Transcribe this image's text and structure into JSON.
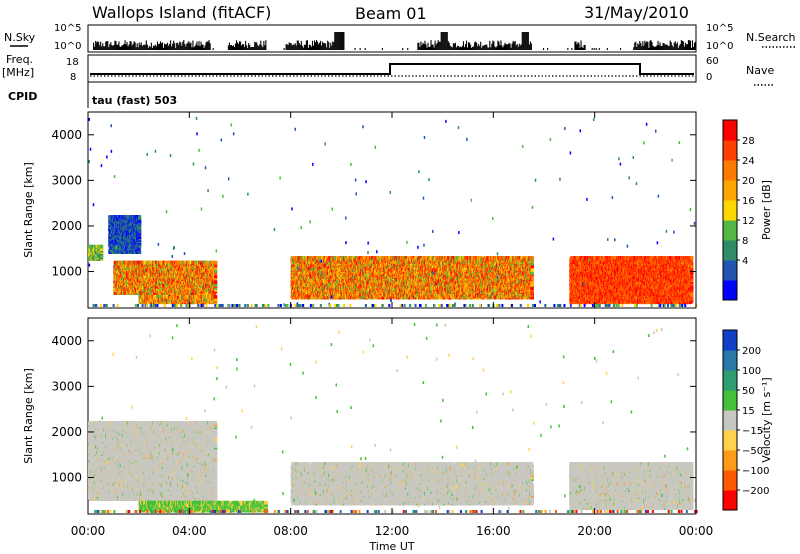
{
  "header": {
    "station": "Wallops Island (fitACF)",
    "beam": "Beam 01",
    "date": "31/May/2010"
  },
  "top_panels": {
    "nsky_label": "N.Sky",
    "nsearch_label": "N.Search",
    "nsky_ticks": [
      "10^5",
      "10^0"
    ],
    "nsearch_ticks": [
      "10^5",
      "10^0"
    ],
    "freq_label": "Freq.",
    "freq_unit": "[MHz]",
    "freq_ticks": [
      "18",
      "8"
    ],
    "nave_label": "Nave",
    "nave_ticks": [
      "60",
      "0"
    ],
    "cpid_label": "CPID",
    "cpid_text": "tau (fast) 503"
  },
  "x_axis": {
    "label": "Time UT",
    "ticks": [
      "00:00",
      "04:00",
      "08:00",
      "12:00",
      "16:00",
      "20:00",
      "00:00"
    ]
  },
  "power_panel": {
    "ylabel": "Slant Range [km]",
    "yticks": [
      "4000",
      "3000",
      "2000",
      "1000"
    ],
    "colorbar_label": "Power [dB]",
    "colorbar_ticks": [
      "28",
      "24",
      "20",
      "16",
      "12",
      "8",
      "4"
    ],
    "colors": [
      "#0000ff",
      "#2255b0",
      "#2f8c66",
      "#55b545",
      "#ffd700",
      "#ffa500",
      "#ff7a00",
      "#ff4000",
      "#ff0000"
    ]
  },
  "velocity_panel": {
    "ylabel": "Slant Range [km]",
    "yticks": [
      "4000",
      "3000",
      "2000",
      "1000"
    ],
    "colorbar_label": "Velocity [m s⁻¹]",
    "colorbar_ticks": [
      "200",
      "100",
      "50",
      "15",
      "−15",
      "−50",
      "−100",
      "−200"
    ],
    "colors": [
      "#1040c8",
      "#2a78a8",
      "#2e9e70",
      "#44c03a",
      "#c8c8c0",
      "#ffd24a",
      "#ff9a1a",
      "#ff5a00",
      "#ff0000"
    ]
  },
  "chart_data": [
    {
      "type": "heatmap",
      "title": "Power",
      "xlabel": "Time UT",
      "ylabel": "Slant Range [km]",
      "xlim": [
        0,
        24
      ],
      "ylim": [
        200,
        4500
      ],
      "colorbar": {
        "label": "Power [dB]",
        "ticks": [
          4,
          8,
          12,
          16,
          20,
          24,
          28
        ]
      },
      "regions": [
        {
          "t0": 0.0,
          "t1": 0.5,
          "r0": 1250,
          "r1": 1550,
          "level": "mid"
        },
        {
          "t0": 0.8,
          "t1": 2.0,
          "r0": 1400,
          "r1": 2200,
          "level": "low"
        },
        {
          "t0": 1.0,
          "t1": 5.0,
          "r0": 500,
          "r1": 1200,
          "level": "high"
        },
        {
          "t0": 2.0,
          "t1": 5.0,
          "r0": 300,
          "r1": 450,
          "level": "high"
        },
        {
          "t0": 8.0,
          "t1": 17.5,
          "r0": 400,
          "r1": 1300,
          "level": "high"
        },
        {
          "t0": 19.0,
          "t1": 23.8,
          "r0": 300,
          "r1": 1300,
          "level": "very-high"
        }
      ]
    },
    {
      "type": "heatmap",
      "title": "Velocity",
      "xlabel": "Time UT",
      "ylabel": "Slant Range [km]",
      "xlim": [
        0,
        24
      ],
      "ylim": [
        200,
        4500
      ],
      "colorbar": {
        "label": "Velocity [m s⁻¹]",
        "ticks": [
          -200,
          -100,
          -50,
          -15,
          15,
          50,
          100,
          200
        ]
      },
      "regions": [
        {
          "t0": 0.0,
          "t1": 5.0,
          "r0": 500,
          "r1": 2200,
          "level": "ground-scatter"
        },
        {
          "t0": 2.0,
          "t1": 7.0,
          "r0": 250,
          "r1": 450,
          "level": "positive-low"
        },
        {
          "t0": 8.0,
          "t1": 17.5,
          "r0": 400,
          "r1": 1300,
          "level": "ground-scatter"
        },
        {
          "t0": 19.0,
          "t1": 23.8,
          "r0": 300,
          "r1": 1300,
          "level": "ground-scatter"
        }
      ]
    }
  ]
}
